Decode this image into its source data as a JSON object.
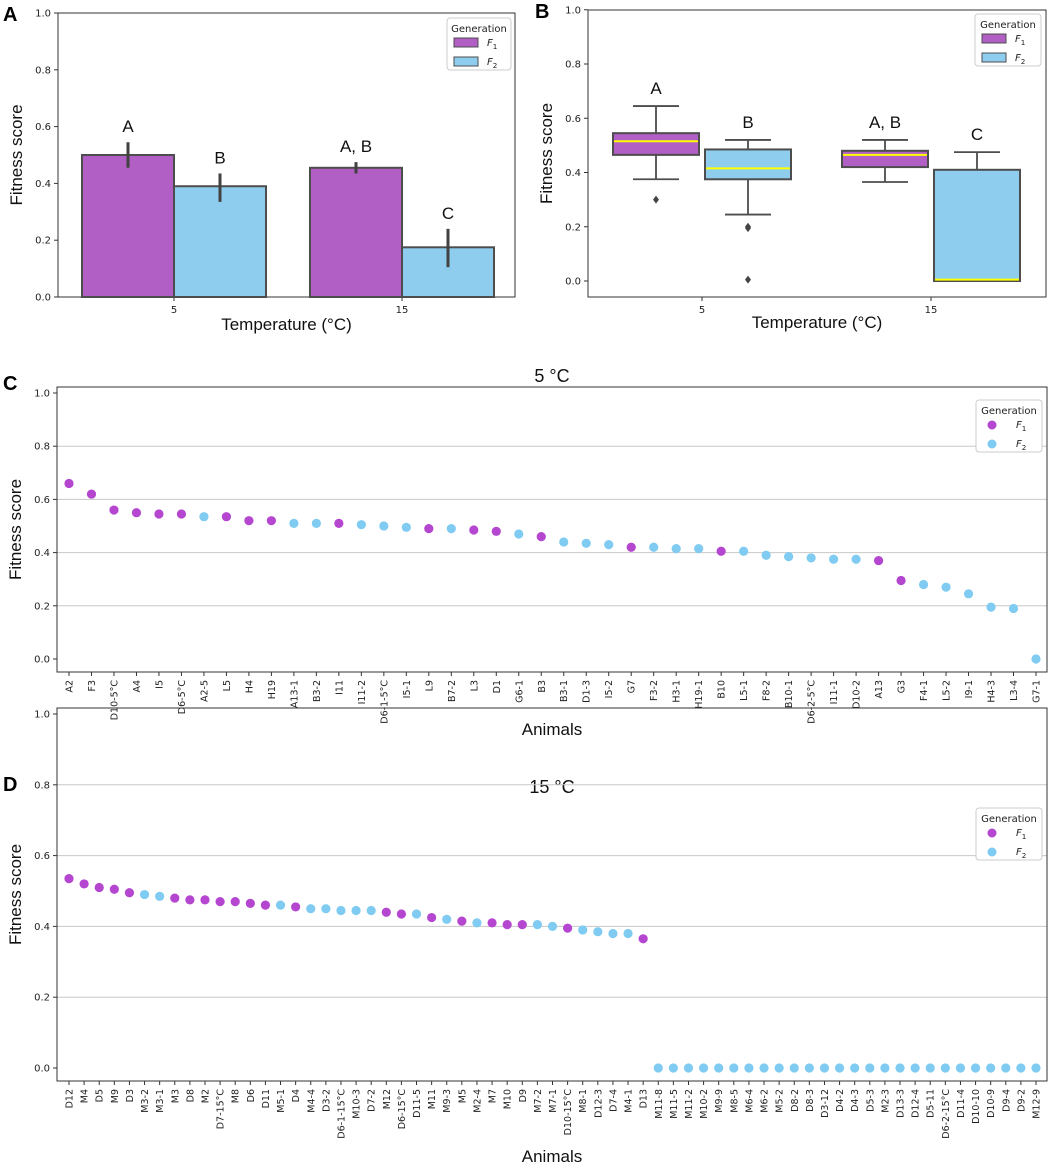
{
  "colors": {
    "f1": "#B15FC4",
    "f2": "#8ECDEE",
    "f1_dot": "#B446D0",
    "f2_dot": "#7FCBF2",
    "median": "#FFFF00",
    "edge": "#4d4d4d"
  },
  "chart_data": [
    {
      "panel": "A",
      "type": "bar",
      "categories": [
        "5",
        "15"
      ],
      "series": [
        {
          "name": "F1",
          "values": [
            0.5,
            0.455
          ],
          "errors": [
            [
              0.455,
              0.545
            ],
            [
              0.435,
              0.475
            ]
          ],
          "letters": [
            "A",
            "A, B"
          ]
        },
        {
          "name": "F2",
          "values": [
            0.39,
            0.175
          ],
          "errors": [
            [
              0.335,
              0.435
            ],
            [
              0.105,
              0.24
            ]
          ],
          "letters": [
            "B",
            "C"
          ]
        }
      ],
      "xlabel": "Temperature (°C)",
      "ylabel": "Fitness score",
      "ylim": [
        0,
        1
      ],
      "yticks": [
        "0.0",
        "0.2",
        "0.4",
        "0.6",
        "0.8",
        "1.0"
      ],
      "legend": {
        "title": "Generation",
        "items": [
          "F1",
          "F2"
        ],
        "placement": "top-right"
      }
    },
    {
      "panel": "B",
      "type": "box",
      "categories": [
        "5",
        "15"
      ],
      "series": [
        {
          "name": "F1",
          "letters": [
            "A",
            "A, B"
          ],
          "boxes": [
            {
              "q1": 0.465,
              "median": 0.515,
              "q3": 0.545,
              "whisker_low": 0.375,
              "whisker_high": 0.645,
              "outliers": [
                0.3
              ]
            },
            {
              "q1": 0.42,
              "median": 0.465,
              "q3": 0.48,
              "whisker_low": 0.365,
              "whisker_high": 0.52,
              "outliers": []
            }
          ]
        },
        {
          "name": "F2",
          "letters": [
            "B",
            "C"
          ],
          "boxes": [
            {
              "q1": 0.375,
              "median": 0.415,
              "q3": 0.485,
              "whisker_low": 0.245,
              "whisker_high": 0.52,
              "outliers": [
                0.2,
                0.195,
                0.005
              ]
            },
            {
              "q1": 0.0,
              "median": 0.005,
              "q3": 0.41,
              "whisker_low": 0.0,
              "whisker_high": 0.475,
              "outliers": []
            }
          ]
        }
      ],
      "xlabel": "Temperature (°C)",
      "ylabel": "Fitness score",
      "ylim": [
        0,
        1
      ],
      "yticks": [
        "0.0",
        "0.2",
        "0.4",
        "0.6",
        "0.8",
        "1.0"
      ],
      "legend": {
        "title": "Generation",
        "items": [
          "F1",
          "F2"
        ],
        "placement": "top-right"
      }
    },
    {
      "panel": "C",
      "type": "scatter",
      "title": "5 °C",
      "xlabel": "Animals",
      "ylabel": "Fitness score",
      "ylim": [
        0,
        1
      ],
      "yticks": [
        "0.0",
        "0.2",
        "0.4",
        "0.6",
        "0.8",
        "1.0"
      ],
      "legend": {
        "title": "Generation",
        "items": [
          "F1",
          "F2"
        ],
        "placement": "top-right"
      },
      "points": [
        [
          "A2",
          0.66,
          1
        ],
        [
          "F3",
          0.62,
          1
        ],
        [
          "D10-5°C",
          0.56,
          1
        ],
        [
          "A4",
          0.55,
          1
        ],
        [
          "I5",
          0.545,
          1
        ],
        [
          "D6-5°C",
          0.545,
          1
        ],
        [
          "A2-5",
          0.535,
          2
        ],
        [
          "L5",
          0.535,
          1
        ],
        [
          "H4",
          0.52,
          1
        ],
        [
          "H19",
          0.52,
          1
        ],
        [
          "A13-1",
          0.51,
          2
        ],
        [
          "B3-2",
          0.51,
          2
        ],
        [
          "I11",
          0.51,
          1
        ],
        [
          "I11-2",
          0.505,
          2
        ],
        [
          "D6-1-5°C",
          0.5,
          2
        ],
        [
          "I5-1",
          0.495,
          2
        ],
        [
          "L9",
          0.49,
          1
        ],
        [
          "B7-2",
          0.49,
          2
        ],
        [
          "L3",
          0.485,
          1
        ],
        [
          "D1",
          0.48,
          1
        ],
        [
          "G6-1",
          0.47,
          2
        ],
        [
          "B3",
          0.46,
          1
        ],
        [
          "B3-1",
          0.44,
          2
        ],
        [
          "D1-3",
          0.435,
          2
        ],
        [
          "I5-2",
          0.43,
          2
        ],
        [
          "G7",
          0.42,
          1
        ],
        [
          "F3-2",
          0.42,
          2
        ],
        [
          "H3-1",
          0.415,
          2
        ],
        [
          "H19-1",
          0.415,
          2
        ],
        [
          "B10",
          0.405,
          1
        ],
        [
          "L5-1",
          0.405,
          2
        ],
        [
          "F8-2",
          0.39,
          2
        ],
        [
          "B10-1",
          0.385,
          2
        ],
        [
          "D6-2-5°C",
          0.38,
          2
        ],
        [
          "I11-1",
          0.375,
          2
        ],
        [
          "D10-2",
          0.375,
          2
        ],
        [
          "A13",
          0.37,
          1
        ],
        [
          "G3",
          0.295,
          1
        ],
        [
          "F4-1",
          0.28,
          2
        ],
        [
          "L5-2",
          0.27,
          2
        ],
        [
          "I9-1",
          0.245,
          2
        ],
        [
          "H4-3",
          0.195,
          2
        ],
        [
          "L3-4",
          0.19,
          2
        ],
        [
          "G7-1",
          0.0,
          2
        ]
      ]
    },
    {
      "panel": "D",
      "type": "scatter",
      "title": "15 °C",
      "xlabel": "Animals",
      "ylabel": "Fitness score",
      "ylim": [
        0,
        1
      ],
      "yticks": [
        "0.0",
        "0.2",
        "0.4",
        "0.6",
        "0.8",
        "1.0"
      ],
      "legend": {
        "title": "Generation",
        "items": [
          "F1",
          "F2"
        ],
        "placement": "top-right"
      },
      "points": [
        [
          "D12",
          0.535,
          1
        ],
        [
          "M4",
          0.52,
          1
        ],
        [
          "D5",
          0.51,
          1
        ],
        [
          "M9",
          0.505,
          1
        ],
        [
          "D3",
          0.495,
          1
        ],
        [
          "M3-2",
          0.49,
          2
        ],
        [
          "M3-1",
          0.485,
          2
        ],
        [
          "M3",
          0.48,
          1
        ],
        [
          "D8",
          0.475,
          1
        ],
        [
          "M2",
          0.475,
          1
        ],
        [
          "D7-15°C",
          0.47,
          1
        ],
        [
          "M8",
          0.47,
          1
        ],
        [
          "D6",
          0.465,
          1
        ],
        [
          "D11",
          0.46,
          1
        ],
        [
          "M5-1",
          0.46,
          2
        ],
        [
          "D4",
          0.455,
          1
        ],
        [
          "M4-4",
          0.45,
          2
        ],
        [
          "D3-2",
          0.45,
          2
        ],
        [
          "D6-1-15°C",
          0.445,
          2
        ],
        [
          "M10-3",
          0.445,
          2
        ],
        [
          "D7-2",
          0.445,
          2
        ],
        [
          "M12",
          0.44,
          1
        ],
        [
          "D6-15°C",
          0.435,
          1
        ],
        [
          "D11-5",
          0.435,
          2
        ],
        [
          "M11",
          0.425,
          1
        ],
        [
          "M9-3",
          0.42,
          2
        ],
        [
          "M5",
          0.415,
          1
        ],
        [
          "M2-4",
          0.41,
          2
        ],
        [
          "M7",
          0.41,
          1
        ],
        [
          "M10",
          0.405,
          1
        ],
        [
          "D9",
          0.405,
          1
        ],
        [
          "M7-2",
          0.405,
          2
        ],
        [
          "M7-1",
          0.4,
          2
        ],
        [
          "D10-15°C",
          0.395,
          1
        ],
        [
          "M8-1",
          0.39,
          2
        ],
        [
          "D12-3",
          0.385,
          2
        ],
        [
          "D7-4",
          0.38,
          2
        ],
        [
          "M4-1",
          0.38,
          2
        ],
        [
          "D13",
          0.365,
          1
        ],
        [
          "M11-8",
          0.0,
          2
        ],
        [
          "M11-5",
          0.0,
          2
        ],
        [
          "M11-2",
          0.0,
          2
        ],
        [
          "M10-2",
          0.0,
          2
        ],
        [
          "M9-9",
          0.0,
          2
        ],
        [
          "M8-5",
          0.0,
          2
        ],
        [
          "M6-4",
          0.0,
          2
        ],
        [
          "M6-2",
          0.0,
          2
        ],
        [
          "M5-2",
          0.0,
          2
        ],
        [
          "D8-2",
          0.0,
          2
        ],
        [
          "D8-3",
          0.0,
          2
        ],
        [
          "D3-12",
          0.0,
          2
        ],
        [
          "D4-2",
          0.0,
          2
        ],
        [
          "D4-3",
          0.0,
          2
        ],
        [
          "D5-3",
          0.0,
          2
        ],
        [
          "M2-3",
          0.0,
          2
        ],
        [
          "D13-3",
          0.0,
          2
        ],
        [
          "D12-4",
          0.0,
          2
        ],
        [
          "D5-11",
          0.0,
          2
        ],
        [
          "D6-2-15°C",
          0.0,
          2
        ],
        [
          "D11-4",
          0.0,
          2
        ],
        [
          "D10-10",
          0.0,
          2
        ],
        [
          "D10-9",
          0.0,
          2
        ],
        [
          "D9-4",
          0.0,
          2
        ],
        [
          "D9-2",
          0.0,
          2
        ],
        [
          "M12-9",
          0.0,
          2
        ]
      ]
    }
  ]
}
